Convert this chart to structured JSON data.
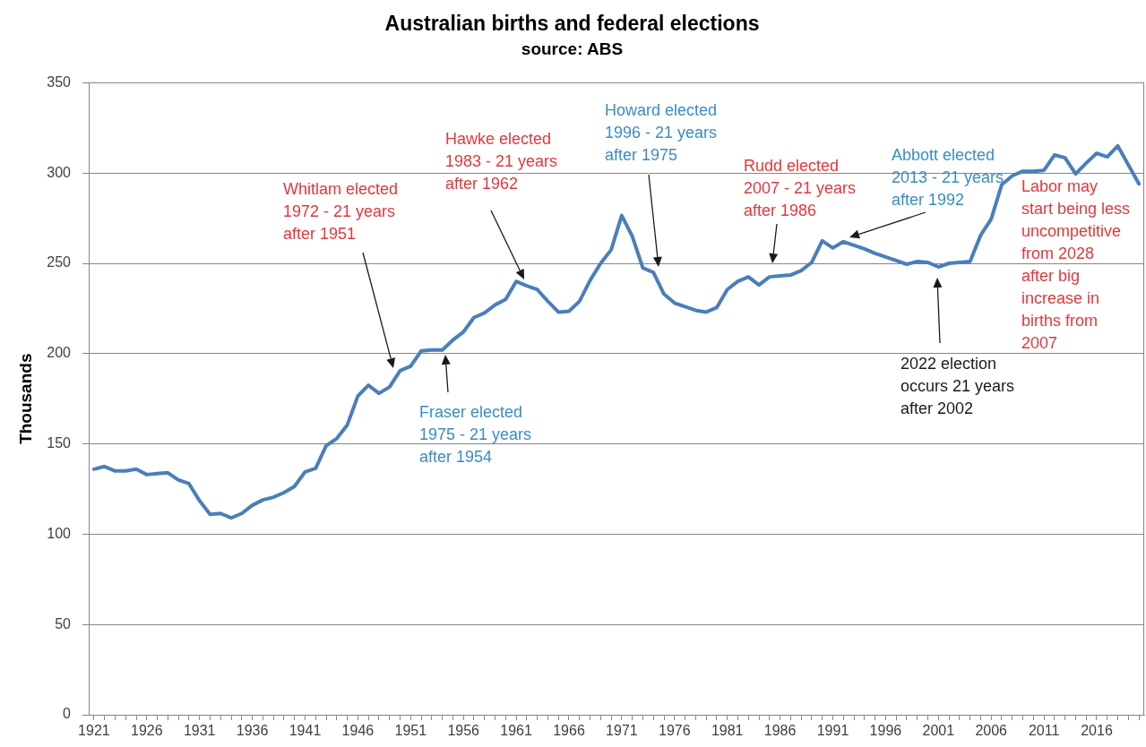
{
  "chart_data": {
    "type": "line",
    "title": "Australian births and federal elections",
    "subtitle": "source: ABS",
    "ylabel": "Thousands",
    "x": [
      1921,
      1922,
      1923,
      1924,
      1925,
      1926,
      1927,
      1928,
      1929,
      1930,
      1931,
      1932,
      1933,
      1934,
      1935,
      1936,
      1937,
      1938,
      1939,
      1940,
      1941,
      1942,
      1943,
      1944,
      1945,
      1946,
      1947,
      1948,
      1949,
      1950,
      1951,
      1952,
      1953,
      1954,
      1955,
      1956,
      1957,
      1958,
      1959,
      1960,
      1961,
      1962,
      1963,
      1964,
      1965,
      1966,
      1967,
      1968,
      1969,
      1970,
      1971,
      1972,
      1973,
      1974,
      1975,
      1976,
      1977,
      1978,
      1979,
      1980,
      1981,
      1982,
      1983,
      1984,
      1985,
      1986,
      1987,
      1988,
      1989,
      1990,
      1991,
      1992,
      1993,
      1994,
      1995,
      1996,
      1997,
      1998,
      1999,
      2000,
      2001,
      2002,
      2003,
      2004,
      2005,
      2006,
      2007,
      2008,
      2009,
      2010,
      2011,
      2012,
      2013,
      2014,
      2015,
      2016,
      2017,
      2018,
      2019,
      2020
    ],
    "values": [
      136,
      137.5,
      135,
      135,
      136,
      133,
      133.5,
      134,
      130,
      128,
      118.5,
      111,
      111.5,
      109,
      111.5,
      116,
      119,
      120.5,
      123,
      126.5,
      134.5,
      136.5,
      149,
      153,
      160.5,
      176.5,
      182.5,
      178,
      181.5,
      190.5,
      193,
      201.5,
      202,
      202,
      207.5,
      212,
      220,
      222.5,
      227,
      230,
      240,
      237.5,
      235.5,
      229,
      223,
      223.5,
      229,
      240.5,
      250,
      257.5,
      276.5,
      265,
      247.5,
      245,
      233,
      228,
      226,
      224,
      223,
      225.5,
      235.5,
      240,
      242.5,
      238,
      242.5,
      243,
      243.5,
      246,
      250.5,
      262.5,
      258.5,
      262,
      260,
      258,
      255.5,
      253.5,
      251.5,
      249.5,
      251,
      250.5,
      248,
      250,
      250.5,
      251,
      265.5,
      274.5,
      293.5,
      298.5,
      301,
      301,
      301.5,
      310,
      308.5,
      299.5,
      305.5,
      311,
      309,
      315,
      304.5,
      294
    ],
    "color": "#4a7ebb",
    "marker": "none",
    "xlim": [
      1920.5,
      2020.5
    ],
    "xticks": [
      1921,
      {
        "value": 1922,
        "label": null
      },
      {
        "value": 1923,
        "label": null
      },
      {
        "value": 1924,
        "label": null
      },
      {
        "value": 1925,
        "label": null
      },
      1926,
      {
        "value": 1927,
        "label": null
      },
      {
        "value": 1928,
        "label": null
      },
      {
        "value": 1929,
        "label": null
      },
      {
        "value": 1930,
        "label": null
      },
      1931,
      {
        "value": 1932,
        "label": null
      },
      {
        "value": 1933,
        "label": null
      },
      {
        "value": 1934,
        "label": null
      },
      {
        "value": 1935,
        "label": null
      },
      1936,
      {
        "value": 1937,
        "label": null
      },
      {
        "value": 1938,
        "label": null
      },
      {
        "value": 1939,
        "label": null
      },
      {
        "value": 1940,
        "label": null
      },
      1941,
      {
        "value": 1942,
        "label": null
      },
      {
        "value": 1943,
        "label": null
      },
      {
        "value": 1944,
        "label": null
      },
      {
        "value": 1945,
        "label": null
      },
      1946,
      {
        "value": 1947,
        "label": null
      },
      {
        "value": 1948,
        "label": null
      },
      {
        "value": 1949,
        "label": null
      },
      {
        "value": 1950,
        "label": null
      },
      1951,
      {
        "value": 1952,
        "label": null
      },
      {
        "value": 1953,
        "label": null
      },
      {
        "value": 1954,
        "label": null
      },
      {
        "value": 1955,
        "label": null
      },
      1956,
      {
        "value": 1957,
        "label": null
      },
      {
        "value": 1958,
        "label": null
      },
      {
        "value": 1959,
        "label": null
      },
      {
        "value": 1960,
        "label": null
      },
      1961,
      {
        "value": 1962,
        "label": null
      },
      {
        "value": 1963,
        "label": null
      },
      {
        "value": 1964,
        "label": null
      },
      {
        "value": 1965,
        "label": null
      },
      1966,
      {
        "value": 1967,
        "label": null
      },
      {
        "value": 1968,
        "label": null
      },
      {
        "value": 1969,
        "label": null
      },
      {
        "value": 1970,
        "label": null
      },
      1971,
      {
        "value": 1972,
        "label": null
      },
      {
        "value": 1973,
        "label": null
      },
      {
        "value": 1974,
        "label": null
      },
      {
        "value": 1975,
        "label": null
      },
      1976,
      {
        "value": 1977,
        "label": null
      },
      {
        "value": 1978,
        "label": null
      },
      {
        "value": 1979,
        "label": null
      },
      {
        "value": 1980,
        "label": null
      },
      1981,
      {
        "value": 1982,
        "label": null
      },
      {
        "value": 1983,
        "label": null
      },
      {
        "value": 1984,
        "label": null
      },
      {
        "value": 1985,
        "label": null
      },
      1986,
      {
        "value": 1987,
        "label": null
      },
      {
        "value": 1988,
        "label": null
      },
      {
        "value": 1989,
        "label": null
      },
      {
        "value": 1990,
        "label": null
      },
      1991,
      {
        "value": 1992,
        "label": null
      },
      {
        "value": 1993,
        "label": null
      },
      {
        "value": 1994,
        "label": null
      },
      {
        "value": 1995,
        "label": null
      },
      1996,
      {
        "value": 1997,
        "label": null
      },
      {
        "value": 1998,
        "label": null
      },
      {
        "value": 1999,
        "label": null
      },
      {
        "value": 2000,
        "label": null
      },
      2001,
      {
        "value": 2002,
        "label": null
      },
      {
        "value": 2003,
        "label": null
      },
      {
        "value": 2004,
        "label": null
      },
      {
        "value": 2005,
        "label": null
      },
      2006,
      {
        "value": 2007,
        "label": null
      },
      {
        "value": 2008,
        "label": null
      },
      {
        "value": 2009,
        "label": null
      },
      {
        "value": 2010,
        "label": null
      },
      2011,
      {
        "value": 2012,
        "label": null
      },
      {
        "value": 2013,
        "label": null
      },
      {
        "value": 2014,
        "label": null
      },
      {
        "value": 2015,
        "label": null
      },
      2016,
      {
        "value": 2017,
        "label": null
      },
      {
        "value": 2018,
        "label": null
      },
      {
        "value": 2019,
        "label": null
      },
      {
        "value": 2020,
        "label": null
      }
    ],
    "ylim": [
      0,
      350
    ],
    "yticks": [
      0,
      50,
      100,
      150,
      200,
      250,
      300,
      350
    ],
    "grid": "y",
    "annotations": [
      "Whitlam elected\n1972 - 21 years\nafter 1951",
      "Hawke elected\n1983 - 21 years\nafter 1962",
      "Howard elected\n1996 - 21 years\nafter 1975",
      "Fraser elected\n1975 - 21 years\nafter 1954",
      "Rudd elected\n2007 - 21 years\nafter 1986",
      "Abbott elected\n2013 - 21 years\nafter 1992",
      "2022 election\noccurs 21 years\nafter 2002",
      "Labor may\nstart being less\nuncompetitive\nfrom 2028\nafter big\nincrease in\nbirths from\n2007"
    ]
  }
}
